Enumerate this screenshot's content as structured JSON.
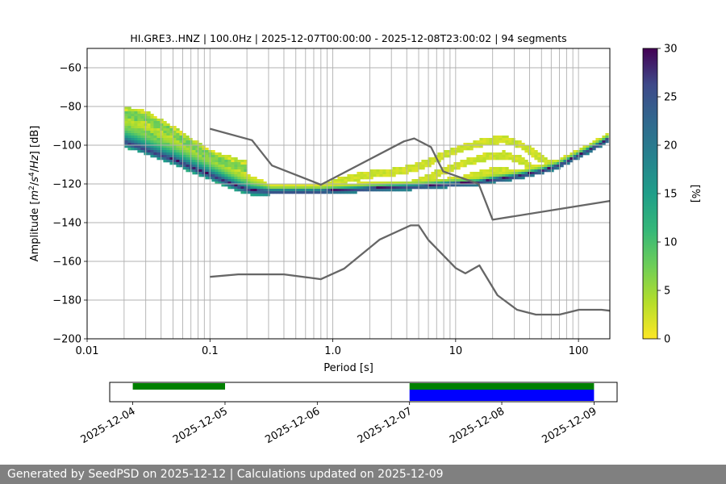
{
  "chart_data": [
    {
      "type": "heatmap",
      "title": "HI.GRE3..HNZ | 100.0Hz | 2025-12-07T00:00:00 - 2025-12-08T23:00:02 | 94 segments",
      "xlabel": "Period [s]",
      "ylabel_parts": [
        "Amplitude [",
        "m",
        "2",
        "/",
        "s",
        "4",
        "/",
        "Hz",
        "] [dB]"
      ],
      "x_scale": "log",
      "xlim": [
        0.01,
        180
      ],
      "ylim": [
        -200,
        -50
      ],
      "x_ticks": [
        {
          "value": 0.01,
          "label": "0.01"
        },
        {
          "value": 0.1,
          "label": "0.1"
        },
        {
          "value": 1,
          "label": "1.0"
        },
        {
          "value": 10,
          "label": "10"
        },
        {
          "value": 100,
          "label": "100"
        }
      ],
      "y_ticks": [
        {
          "value": -60,
          "label": "−60"
        },
        {
          "value": -80,
          "label": "−80"
        },
        {
          "value": -100,
          "label": "−100"
        },
        {
          "value": -120,
          "label": "−120"
        },
        {
          "value": -140,
          "label": "−140"
        },
        {
          "value": -160,
          "label": "−160"
        },
        {
          "value": -180,
          "label": "−180"
        },
        {
          "value": -200,
          "label": "−200"
        }
      ],
      "grid_periods": [
        0.02,
        0.03,
        0.04,
        0.05,
        0.06,
        0.07,
        0.08,
        0.09,
        0.1,
        0.2,
        0.3,
        0.4,
        0.5,
        0.6,
        0.7,
        0.8,
        0.9,
        1,
        2,
        3,
        4,
        5,
        6,
        7,
        8,
        9,
        10,
        20,
        30,
        40,
        50,
        60,
        70,
        80,
        90,
        100
      ],
      "colorbar": {
        "label": "[%]",
        "range": [
          0,
          30
        ],
        "ticks": [
          "0",
          "5",
          "10",
          "15",
          "20",
          "25",
          "30"
        ],
        "colormap": "viridis_r"
      },
      "psd_mode_curve": [
        [
          0.02,
          -98
        ],
        [
          0.025,
          -100
        ],
        [
          0.03,
          -102
        ],
        [
          0.04,
          -105
        ],
        [
          0.05,
          -107
        ],
        [
          0.07,
          -111
        ],
        [
          0.1,
          -115
        ],
        [
          0.13,
          -118
        ],
        [
          0.17,
          -121
        ],
        [
          0.22,
          -123
        ],
        [
          0.3,
          -123.5
        ],
        [
          0.5,
          -123.5
        ],
        [
          0.8,
          -123.5
        ],
        [
          1.0,
          -123
        ],
        [
          1.5,
          -122.5
        ],
        [
          2,
          -122
        ],
        [
          3,
          -121.5
        ],
        [
          5,
          -121
        ],
        [
          8,
          -120
        ],
        [
          10,
          -119.5
        ],
        [
          15,
          -119
        ],
        [
          20,
          -117.5
        ],
        [
          30,
          -116
        ],
        [
          50,
          -113
        ],
        [
          70,
          -110
        ],
        [
          100,
          -105
        ],
        [
          150,
          -99
        ],
        [
          180,
          -96
        ]
      ],
      "psd_bump_curve": [
        [
          0.8,
          -120
        ],
        [
          1.2,
          -116
        ],
        [
          2,
          -113
        ],
        [
          3,
          -112
        ],
        [
          4.5,
          -110
        ],
        [
          6,
          -107
        ],
        [
          8,
          -103
        ],
        [
          12,
          -99
        ],
        [
          18,
          -96
        ],
        [
          25,
          -95
        ],
        [
          35,
          -98
        ],
        [
          50,
          -105
        ],
        [
          70,
          -110
        ],
        [
          100,
          -109
        ]
      ],
      "psd_upper_curve": [
        [
          0.02,
          -82
        ],
        [
          0.03,
          -84
        ],
        [
          0.05,
          -92
        ],
        [
          0.07,
          -98
        ],
        [
          0.1,
          -104
        ],
        [
          0.15,
          -108
        ],
        [
          0.2,
          -110
        ]
      ],
      "model_curves": [
        {
          "type": "line",
          "points": [
            [
              0.1,
              -91.5
            ],
            [
              0.22,
              -97.4
            ],
            [
              0.32,
              -110.5
            ],
            [
              0.8,
              -120.4
            ],
            [
              3.8,
              -98.0
            ],
            [
              4.6,
              -96.5
            ],
            [
              6.3,
              -101.0
            ],
            [
              7.9,
              -113.5
            ],
            [
              15.4,
              -120.0
            ],
            [
              20,
              -138.5
            ],
            [
              180,
              -128.8
            ]
          ]
        },
        {
          "type": "line",
          "points": [
            [
              0.1,
              -168.0
            ],
            [
              0.17,
              -166.7
            ],
            [
              0.4,
              -166.7
            ],
            [
              0.8,
              -169.2
            ],
            [
              1.24,
              -163.7
            ],
            [
              2.4,
              -148.8
            ],
            [
              4.3,
              -141.4
            ],
            [
              5.0,
              -141.4
            ],
            [
              6.0,
              -149.0
            ],
            [
              10.0,
              -163.4
            ],
            [
              12.0,
              -166.2
            ],
            [
              15.6,
              -162.1
            ],
            [
              21.9,
              -177.5
            ],
            [
              31.6,
              -185.0
            ],
            [
              45.0,
              -187.5
            ],
            [
              70.0,
              -187.5
            ],
            [
              101.0,
              -185.0
            ],
            [
              154.0,
              -185.0
            ],
            [
              180.0,
              -185.5
            ]
          ]
        }
      ]
    },
    {
      "type": "bar",
      "x_ticks": [
        "2025-12-04",
        "2025-12-05",
        "2025-12-06",
        "2025-12-07",
        "2025-12-08",
        "2025-12-09"
      ],
      "xlim": [
        "2025-12-03T18:00:00",
        "2025-12-09T06:00:00"
      ],
      "series": [
        {
          "color": "#008000",
          "intervals": [
            [
              "2025-12-04T00:00:00",
              "2025-12-05T00:00:00"
            ],
            [
              "2025-12-07T00:00:00",
              "2025-12-09T00:00:00"
            ]
          ]
        },
        {
          "color": "#0000ff",
          "intervals": [
            [
              "2025-12-07T00:00:00",
              "2025-12-09T00:00:00"
            ]
          ]
        }
      ]
    }
  ],
  "footer": {
    "text": "Generated by SeedPSD on 2025-12-12 | Calculations updated on 2025-12-09"
  }
}
